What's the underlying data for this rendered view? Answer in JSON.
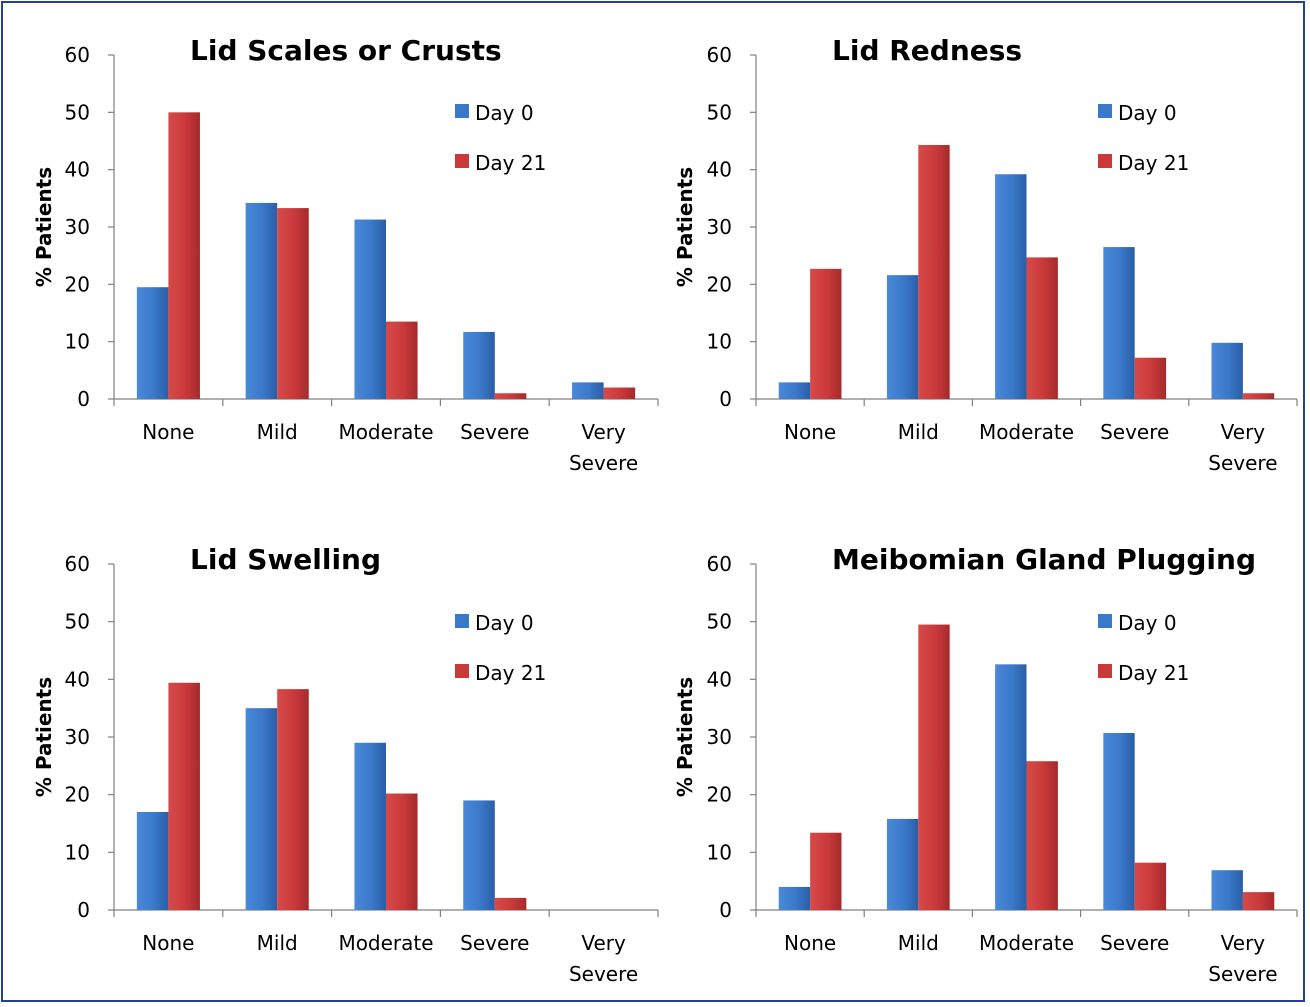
{
  "colors": {
    "day0": "#3a78c9",
    "day21": "#c9393a"
  },
  "chart_data": [
    {
      "type": "bar",
      "title": "Lid Scales or Crusts",
      "ylabel": "% Patients",
      "ylim": [
        0,
        60
      ],
      "yticks": [
        "0",
        "10",
        "20",
        "30",
        "40",
        "50",
        "60"
      ],
      "categories": [
        [
          "None"
        ],
        [
          "Mild"
        ],
        [
          "Moderate"
        ],
        [
          "Severe"
        ],
        [
          "Very",
          "Severe"
        ]
      ],
      "legend_position": "top-right",
      "series": [
        {
          "name": "Day 0",
          "values": [
            19.5,
            34.2,
            31.3,
            11.7,
            2.9
          ]
        },
        {
          "name": "Day 21",
          "values": [
            50.0,
            33.3,
            13.5,
            1.0,
            2.0
          ]
        }
      ]
    },
    {
      "type": "bar",
      "title": "Lid Redness",
      "ylabel": "% Patients",
      "ylim": [
        0,
        60
      ],
      "yticks": [
        "0",
        "10",
        "20",
        "30",
        "40",
        "50",
        "60"
      ],
      "categories": [
        [
          "None"
        ],
        [
          "Mild"
        ],
        [
          "Moderate"
        ],
        [
          "Severe"
        ],
        [
          "Very",
          "Severe"
        ]
      ],
      "legend_position": "top-right",
      "series": [
        {
          "name": "Day 0",
          "values": [
            2.9,
            21.6,
            39.2,
            26.5,
            9.8
          ]
        },
        {
          "name": "Day 21",
          "values": [
            22.7,
            44.3,
            24.7,
            7.2,
            1.0
          ]
        }
      ]
    },
    {
      "type": "bar",
      "title": "Lid Swelling",
      "ylabel": "% Patients",
      "ylim": [
        0,
        60
      ],
      "yticks": [
        "0",
        "10",
        "20",
        "30",
        "40",
        "50",
        "60"
      ],
      "categories": [
        [
          "None"
        ],
        [
          "Mild"
        ],
        [
          "Moderate"
        ],
        [
          "Severe"
        ],
        [
          "Very",
          "Severe"
        ]
      ],
      "legend_position": "top-right",
      "series": [
        {
          "name": "Day 0",
          "values": [
            17.0,
            35.0,
            29.0,
            19.0,
            0
          ]
        },
        {
          "name": "Day 21",
          "values": [
            39.4,
            38.3,
            20.2,
            2.1,
            0
          ]
        }
      ]
    },
    {
      "type": "bar",
      "title": "Meibomian Gland Plugging",
      "ylabel": "% Patients",
      "ylim": [
        0,
        60
      ],
      "yticks": [
        "0",
        "10",
        "20",
        "30",
        "40",
        "50",
        "60"
      ],
      "categories": [
        [
          "None"
        ],
        [
          "Mild"
        ],
        [
          "Moderate"
        ],
        [
          "Severe"
        ],
        [
          "Very",
          "Severe"
        ]
      ],
      "legend_position": "top-right",
      "series": [
        {
          "name": "Day 0",
          "values": [
            4.0,
            15.8,
            42.6,
            30.7,
            6.9
          ]
        },
        {
          "name": "Day 21",
          "values": [
            13.4,
            49.5,
            25.8,
            8.2,
            3.1
          ]
        }
      ]
    }
  ]
}
